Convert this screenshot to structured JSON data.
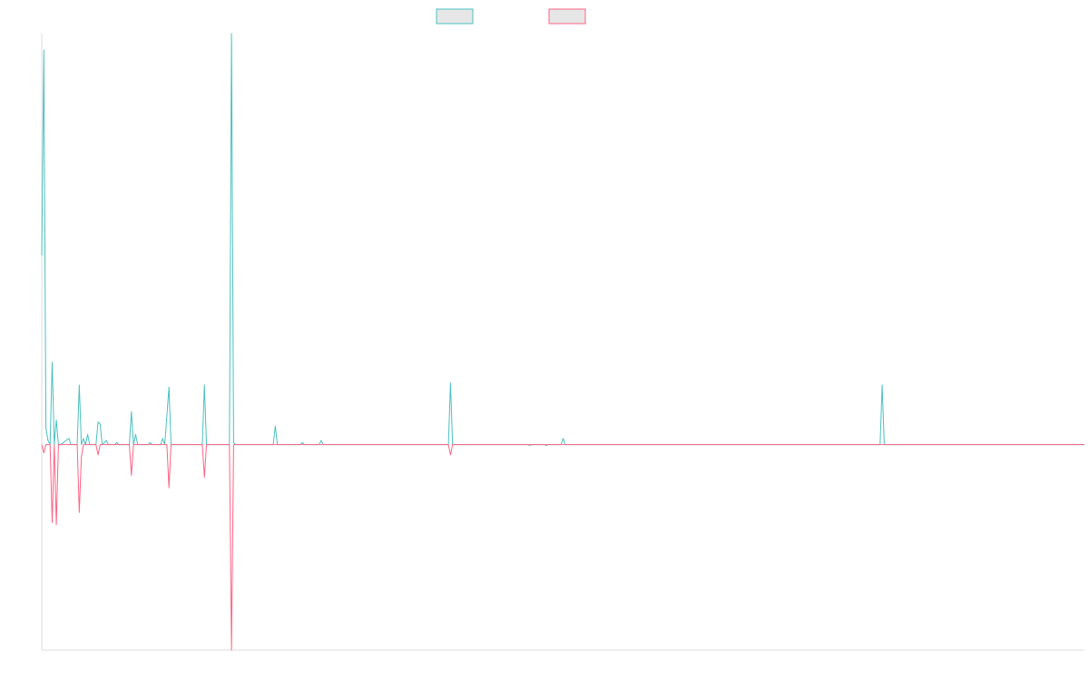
{
  "chart_data": {
    "type": "line",
    "title": "",
    "xlabel": "",
    "ylabel": "",
    "grid": false,
    "legend": "top-center",
    "xlim": [
      0,
      500
    ],
    "ylim": [
      -50,
      100
    ],
    "series": [
      {
        "color": "#4bc0c0",
        "fill": "#e6e6e6",
        "points": [
          [
            0,
            46
          ],
          [
            1,
            96
          ],
          [
            2,
            4
          ],
          [
            3,
            1
          ],
          [
            4,
            0
          ],
          [
            5,
            20
          ],
          [
            6,
            0
          ],
          [
            7,
            6
          ],
          [
            8,
            0
          ],
          [
            9,
            0
          ],
          [
            13,
            1.5
          ],
          [
            14,
            0
          ],
          [
            17,
            0
          ],
          [
            18,
            14.5
          ],
          [
            19,
            0
          ],
          [
            20,
            1.5
          ],
          [
            21,
            0
          ],
          [
            22,
            2.5
          ],
          [
            23,
            0
          ],
          [
            26,
            0
          ],
          [
            27,
            5.5
          ],
          [
            28,
            5
          ],
          [
            29,
            0
          ],
          [
            31,
            1
          ],
          [
            32,
            0
          ],
          [
            35,
            0
          ],
          [
            36,
            0.5
          ],
          [
            37,
            0
          ],
          [
            42,
            0
          ],
          [
            43,
            8
          ],
          [
            44,
            0
          ],
          [
            45,
            2.5
          ],
          [
            46,
            0
          ],
          [
            51,
            0
          ],
          [
            52,
            0.5
          ],
          [
            53,
            0
          ],
          [
            57,
            0
          ],
          [
            58,
            1.5
          ],
          [
            59,
            0
          ],
          [
            61,
            14
          ],
          [
            62,
            0
          ],
          [
            77,
            0
          ],
          [
            78,
            14.5
          ],
          [
            79,
            0
          ],
          [
            90,
            0
          ],
          [
            91,
            100
          ],
          [
            92,
            0.5
          ],
          [
            93,
            0
          ],
          [
            111,
            0
          ],
          [
            112,
            4.5
          ],
          [
            113,
            0
          ],
          [
            124,
            0
          ],
          [
            125,
            0.5
          ],
          [
            126,
            0
          ],
          [
            133,
            0
          ],
          [
            134,
            1
          ],
          [
            135,
            0
          ],
          [
            195,
            0
          ],
          [
            196,
            15
          ],
          [
            197,
            0
          ],
          [
            233,
            0
          ],
          [
            234,
            -0.2
          ],
          [
            235,
            0
          ],
          [
            241,
            0
          ],
          [
            242,
            -0.2
          ],
          [
            243,
            0
          ],
          [
            249,
            0
          ],
          [
            250,
            1.5
          ],
          [
            251,
            0
          ],
          [
            402,
            0
          ],
          [
            403,
            14.5
          ],
          [
            404,
            0
          ],
          [
            500,
            0
          ]
        ]
      },
      {
        "color": "#ff6384",
        "fill": "#e6e6e6",
        "points": [
          [
            0,
            0
          ],
          [
            1,
            -2
          ],
          [
            2,
            0
          ],
          [
            4,
            0
          ],
          [
            5,
            -19
          ],
          [
            6,
            0
          ],
          [
            7,
            -19.5
          ],
          [
            8,
            0
          ],
          [
            17,
            0
          ],
          [
            18,
            -16.5
          ],
          [
            19,
            -3
          ],
          [
            20,
            0
          ],
          [
            26,
            0
          ],
          [
            27,
            -2.5
          ],
          [
            28,
            0
          ],
          [
            42,
            0
          ],
          [
            43,
            -7.5
          ],
          [
            44,
            0
          ],
          [
            60,
            0
          ],
          [
            61,
            -10.5
          ],
          [
            62,
            0
          ],
          [
            77,
            0
          ],
          [
            78,
            -8
          ],
          [
            79,
            0
          ],
          [
            90,
            0
          ],
          [
            91,
            -50
          ],
          [
            92,
            0
          ],
          [
            195,
            0
          ],
          [
            196,
            -2.5
          ],
          [
            197,
            0
          ],
          [
            500,
            0
          ]
        ]
      }
    ]
  }
}
